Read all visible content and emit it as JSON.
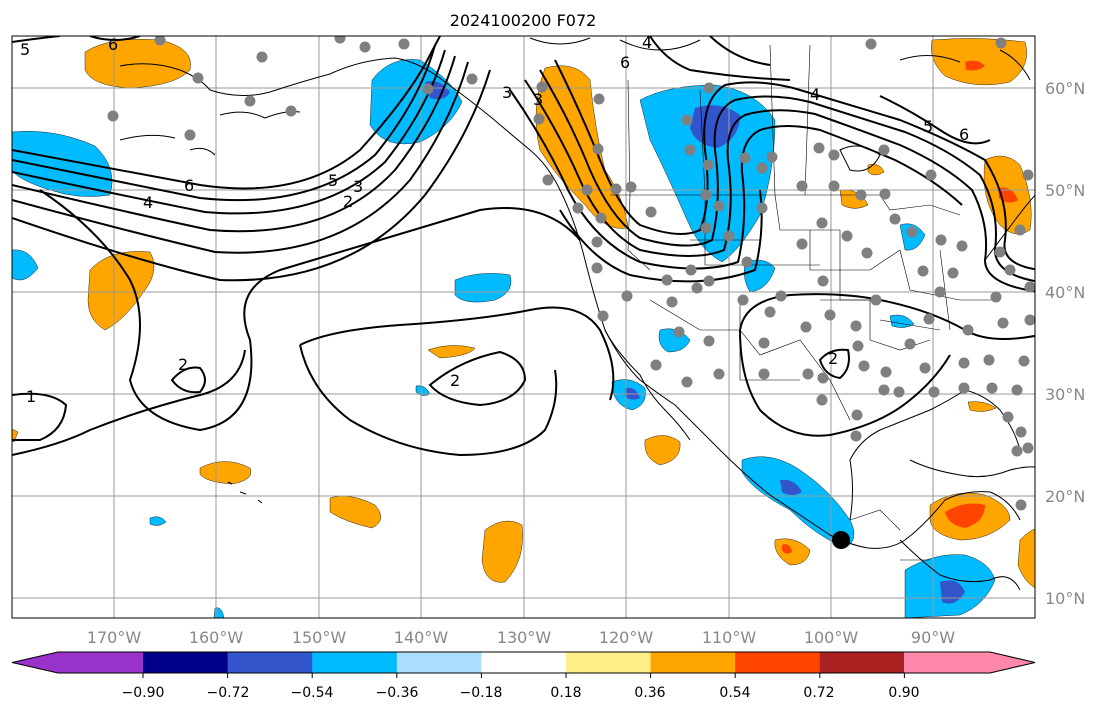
{
  "title": "2024100200 F072",
  "map": {
    "lon_ticks": [
      "170°W",
      "160°W",
      "150°W",
      "140°W",
      "130°W",
      "120°W",
      "110°W",
      "100°W",
      "90°W"
    ],
    "lat_ticks": [
      "60°N",
      "50°N",
      "40°N",
      "30°N",
      "20°N",
      "10°N"
    ],
    "contour_labels": [
      "6",
      "5",
      "4",
      "6",
      "4",
      "5",
      "3",
      "2",
      "3",
      "3",
      "6",
      "4",
      "5",
      "6",
      "2",
      "2",
      "2",
      "1"
    ],
    "station_color": "#808080",
    "highlight_marker_color": "#000000"
  },
  "colorbar": {
    "tick_labels": [
      "−0.90",
      "−0.72",
      "−0.54",
      "−0.36",
      "−0.18",
      "0.18",
      "0.36",
      "0.54",
      "0.72",
      "0.90"
    ],
    "colors": [
      "#9933cc",
      "#000088",
      "#3355cc",
      "#00bbff",
      "#aaddff",
      "#ffffff",
      "#ffee88",
      "#ffa500",
      "#ff4400",
      "#aa2222",
      "#ff88aa"
    ]
  }
}
